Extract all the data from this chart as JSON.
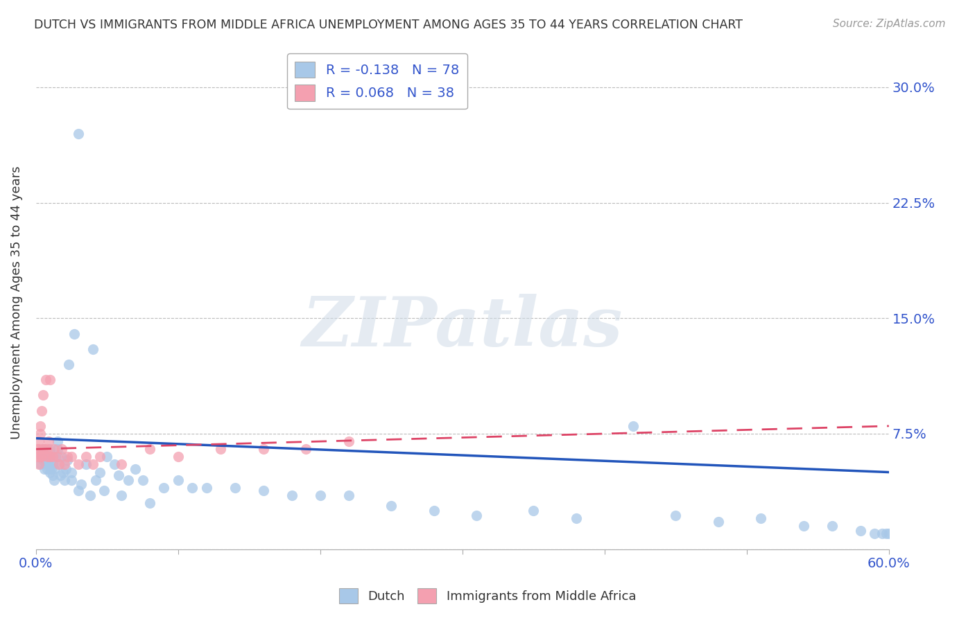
{
  "title": "DUTCH VS IMMIGRANTS FROM MIDDLE AFRICA UNEMPLOYMENT AMONG AGES 35 TO 44 YEARS CORRELATION CHART",
  "source": "Source: ZipAtlas.com",
  "ylabel": "Unemployment Among Ages 35 to 44 years",
  "xlim": [
    0.0,
    0.6
  ],
  "ylim": [
    0.0,
    0.32
  ],
  "yticks": [
    0.0,
    0.075,
    0.15,
    0.225,
    0.3
  ],
  "ytick_labels": [
    "",
    "7.5%",
    "15.0%",
    "22.5%",
    "30.0%"
  ],
  "xtick_vals": [
    0.0,
    0.1,
    0.2,
    0.3,
    0.4,
    0.5,
    0.6
  ],
  "xtick_labels": [
    "0.0%",
    "",
    "",
    "",
    "",
    "",
    "60.0%"
  ],
  "dutch_color": "#a8c8e8",
  "immigrant_color": "#f4a0b0",
  "dutch_line_color": "#2255bb",
  "immigrant_line_color": "#dd4466",
  "dutch_R": -0.138,
  "dutch_N": 78,
  "immigrant_R": 0.068,
  "immigrant_N": 38,
  "background_color": "#ffffff",
  "grid_color": "#bbbbbb",
  "watermark": "ZIPatlas",
  "dutch_x": [
    0.002,
    0.003,
    0.004,
    0.005,
    0.005,
    0.006,
    0.006,
    0.007,
    0.007,
    0.008,
    0.008,
    0.009,
    0.009,
    0.01,
    0.01,
    0.01,
    0.011,
    0.011,
    0.012,
    0.012,
    0.013,
    0.013,
    0.014,
    0.015,
    0.015,
    0.016,
    0.017,
    0.018,
    0.019,
    0.02,
    0.021,
    0.022,
    0.023,
    0.025,
    0.025,
    0.027,
    0.03,
    0.03,
    0.032,
    0.035,
    0.038,
    0.04,
    0.042,
    0.045,
    0.048,
    0.05,
    0.055,
    0.058,
    0.06,
    0.065,
    0.07,
    0.075,
    0.08,
    0.09,
    0.1,
    0.11,
    0.12,
    0.14,
    0.16,
    0.18,
    0.2,
    0.22,
    0.25,
    0.28,
    0.31,
    0.35,
    0.38,
    0.42,
    0.45,
    0.48,
    0.51,
    0.54,
    0.56,
    0.58,
    0.59,
    0.595,
    0.598,
    0.6
  ],
  "dutch_y": [
    0.062,
    0.055,
    0.06,
    0.058,
    0.065,
    0.052,
    0.058,
    0.055,
    0.06,
    0.052,
    0.057,
    0.055,
    0.06,
    0.05,
    0.055,
    0.065,
    0.052,
    0.06,
    0.048,
    0.055,
    0.045,
    0.052,
    0.06,
    0.065,
    0.07,
    0.055,
    0.048,
    0.06,
    0.05,
    0.045,
    0.052,
    0.058,
    0.12,
    0.045,
    0.05,
    0.14,
    0.038,
    0.27,
    0.042,
    0.055,
    0.035,
    0.13,
    0.045,
    0.05,
    0.038,
    0.06,
    0.055,
    0.048,
    0.035,
    0.045,
    0.052,
    0.045,
    0.03,
    0.04,
    0.045,
    0.04,
    0.04,
    0.04,
    0.038,
    0.035,
    0.035,
    0.035,
    0.028,
    0.025,
    0.022,
    0.025,
    0.02,
    0.08,
    0.022,
    0.018,
    0.02,
    0.015,
    0.015,
    0.012,
    0.01,
    0.01,
    0.01,
    0.01
  ],
  "immigrant_x": [
    0.001,
    0.001,
    0.002,
    0.002,
    0.002,
    0.003,
    0.003,
    0.003,
    0.004,
    0.004,
    0.005,
    0.005,
    0.006,
    0.007,
    0.008,
    0.008,
    0.009,
    0.01,
    0.01,
    0.012,
    0.013,
    0.015,
    0.016,
    0.018,
    0.02,
    0.022,
    0.025,
    0.03,
    0.035,
    0.04,
    0.045,
    0.06,
    0.08,
    0.1,
    0.13,
    0.16,
    0.19,
    0.22
  ],
  "immigrant_y": [
    0.06,
    0.065,
    0.055,
    0.065,
    0.07,
    0.06,
    0.075,
    0.08,
    0.06,
    0.09,
    0.065,
    0.1,
    0.065,
    0.11,
    0.06,
    0.065,
    0.07,
    0.06,
    0.11,
    0.06,
    0.065,
    0.06,
    0.055,
    0.065,
    0.055,
    0.06,
    0.06,
    0.055,
    0.06,
    0.055,
    0.06,
    0.055,
    0.065,
    0.06,
    0.065,
    0.065,
    0.065,
    0.07
  ],
  "dutch_line_x0": 0.0,
  "dutch_line_y0": 0.072,
  "dutch_line_x1": 0.6,
  "dutch_line_y1": 0.05,
  "imm_line_x0": 0.0,
  "imm_line_y0": 0.065,
  "imm_line_x1": 0.6,
  "imm_line_y1": 0.08
}
